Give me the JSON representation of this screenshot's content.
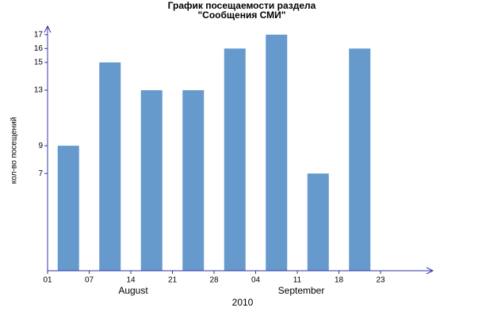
{
  "chart_data": {
    "type": "bar",
    "title": [
      "График посещаемости раздела",
      "\"Сообщения СМИ\""
    ],
    "y_label": "кол-во посещений",
    "x_label": "2010",
    "month_labels": [
      "August",
      "September"
    ],
    "xtick_labels": [
      "01",
      "07",
      "14",
      "21",
      "28",
      "04",
      "11",
      "18",
      "23"
    ],
    "categories": [
      null,
      null,
      null,
      null,
      null,
      null,
      null,
      null
    ],
    "values": [
      9,
      15,
      13,
      13,
      16,
      17,
      7,
      16
    ],
    "color": "#6699cc",
    "ylim": [
      0,
      17.5
    ],
    "yticks": [
      7,
      9,
      13,
      15,
      16,
      17
    ]
  }
}
